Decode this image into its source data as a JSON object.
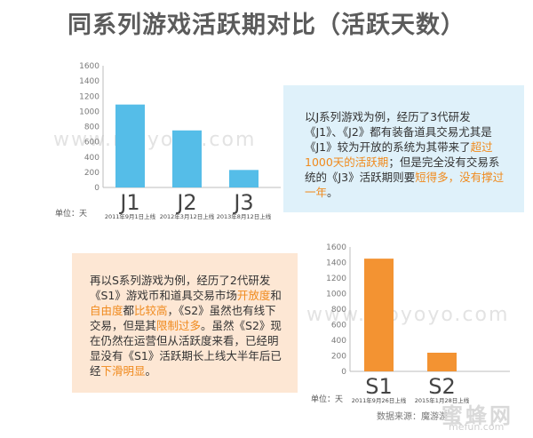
{
  "title": "同系列游戏活跃期对比（活跃天数）",
  "watermark": "www.moyoyo.com",
  "colors": {
    "j_bar": "#55bde8",
    "s_bar": "#f39332",
    "highlight": "#f08a1d"
  },
  "chart_data": [
    {
      "type": "bar",
      "title": "",
      "ylabel": "单位：天",
      "ylim": [
        0,
        1600
      ],
      "yticks": [
        0,
        200,
        400,
        600,
        800,
        1000,
        1200,
        1400,
        1600
      ],
      "categories": [
        "J1",
        "J2",
        "J3"
      ],
      "sublabels": [
        "2011年9月1日上线",
        "2012年3月12日上线",
        "2013年8月12日上线"
      ],
      "values": [
        1090,
        750,
        230
      ],
      "grid": false,
      "legend": "none"
    },
    {
      "type": "bar",
      "title": "",
      "ylabel": "单位：天",
      "ylim": [
        0,
        1600
      ],
      "yticks": [
        0,
        200,
        400,
        600,
        800,
        1000,
        1200,
        1400,
        1600
      ],
      "categories": [
        "S1",
        "S2"
      ],
      "sublabels": [
        "2011年9月26日上线",
        "2015年1月28日上线"
      ],
      "values": [
        1450,
        240
      ],
      "grid": false,
      "legend": "none"
    }
  ],
  "note_j": {
    "p1": "以J系列游戏为例，经历了3代研发《J1》、《J2》都有装备道具交易尤其是《J1》较为开放的系统为其带来了",
    "h1": "超过1000天的活跃期",
    "p2": "；但是完全没有交易系统的《J3》活跃期则要",
    "h2": "短得多，没有撑过一年",
    "p3": "。"
  },
  "note_s": {
    "p1": "再以S系列游戏为例，经历了2代研发《S1》游戏币和道具交易市场",
    "h1": "开放度",
    "p2": "和",
    "h2": "自由度",
    "p3": "都",
    "h3": "比较高",
    "p4": "，《S2》虽然也有线下交易，但是其",
    "h4": "限制过多",
    "p5": "。虽然《S2》现在仍然在运营但从活跃度来看，已经明显没有《S1》活跃期长上线大半年后已经",
    "h5": "下滑明显",
    "p6": "。"
  },
  "source": "数据来源：魔游游",
  "logo": {
    "cn": "蜜蜂网",
    "en": "mefun.com"
  }
}
